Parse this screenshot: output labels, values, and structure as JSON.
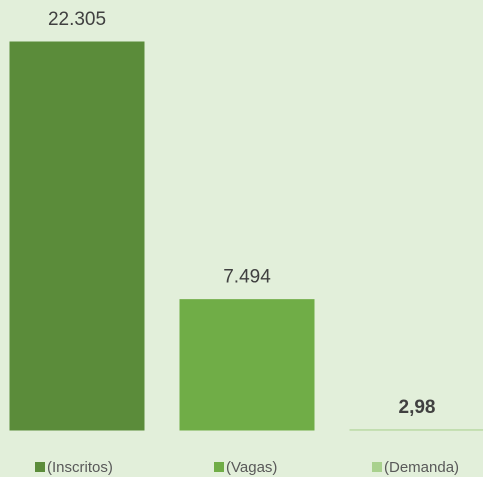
{
  "chart_data": {
    "type": "bar",
    "series": [
      {
        "name": "(Inscritos)",
        "color": "#5b8c3a",
        "values": [
          22305
        ],
        "value_labels": [
          "22.305"
        ]
      },
      {
        "name": "(Vagas)",
        "color": "#70ad47",
        "values": [
          7494
        ],
        "value_labels": [
          "7.494"
        ]
      },
      {
        "name": "(Demanda)",
        "color": "#a9d18e",
        "values": [
          2.98
        ],
        "value_labels": [
          "2,98"
        ]
      }
    ]
  }
}
